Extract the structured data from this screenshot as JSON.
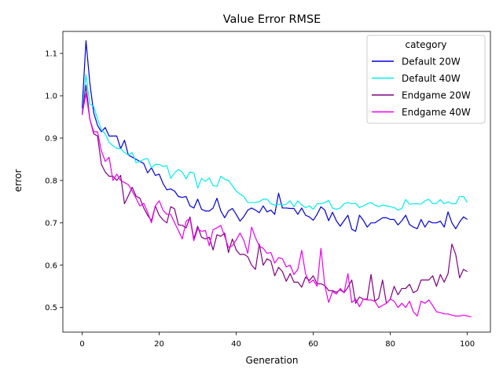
{
  "chart_data": {
    "type": "line",
    "title": "Value Error RMSE",
    "xlabel": "Generation",
    "ylabel": "error",
    "xlim": [
      -5,
      106
    ],
    "ylim": [
      0.442,
      1.152
    ],
    "xticks": [
      0,
      20,
      40,
      60,
      80,
      100
    ],
    "yticks": [
      0.5,
      0.6,
      0.7,
      0.8,
      0.9,
      1.0,
      1.1
    ],
    "grid": false,
    "legend": {
      "title": "category",
      "position": "top-right"
    },
    "x_start": 0,
    "series": [
      {
        "name": "Default 20W",
        "color": "#0000dd",
        "values": [
          0.97,
          1.13,
          1.03,
          0.96,
          0.93,
          0.915,
          0.925,
          0.905,
          0.905,
          0.905,
          0.875,
          0.895,
          0.86,
          0.855,
          0.85,
          0.845,
          0.84,
          0.818,
          0.83,
          0.812,
          0.815,
          0.793,
          0.778,
          0.78,
          0.775,
          0.762,
          0.76,
          0.762,
          0.74,
          0.735,
          0.756,
          0.732,
          0.728,
          0.728,
          0.735,
          0.758,
          0.728,
          0.712,
          0.728,
          0.734,
          0.72,
          0.704,
          0.715,
          0.73,
          0.735,
          0.73,
          0.724,
          0.74,
          0.726,
          0.73,
          0.72,
          0.77,
          0.735,
          0.735,
          0.734,
          0.734,
          0.72,
          0.735,
          0.718,
          0.714,
          0.706,
          0.72,
          0.738,
          0.73,
          0.705,
          0.725,
          0.705,
          0.692,
          0.705,
          0.718,
          0.685,
          0.68,
          0.718,
          0.706,
          0.69,
          0.7,
          0.7,
          0.706,
          0.712,
          0.712,
          0.708,
          0.708,
          0.695,
          0.705,
          0.718,
          0.696,
          0.69,
          0.686,
          0.708,
          0.69,
          0.704,
          0.7,
          0.7,
          0.704,
          0.69,
          0.726,
          0.7,
          0.686,
          0.702,
          0.714,
          0.708
        ]
      },
      {
        "name": "Default 40W",
        "color": "#00eeee",
        "values": [
          0.96,
          1.05,
          0.98,
          0.975,
          0.945,
          0.92,
          0.91,
          0.89,
          0.882,
          0.876,
          0.875,
          0.866,
          0.86,
          0.866,
          0.842,
          0.845,
          0.85,
          0.852,
          0.83,
          0.838,
          0.838,
          0.833,
          0.835,
          0.805,
          0.818,
          0.826,
          0.82,
          0.804,
          0.82,
          0.818,
          0.782,
          0.805,
          0.798,
          0.806,
          0.788,
          0.786,
          0.81,
          0.803,
          0.8,
          0.788,
          0.775,
          0.768,
          0.762,
          0.748,
          0.748,
          0.748,
          0.75,
          0.756,
          0.756,
          0.745,
          0.742,
          0.744,
          0.742,
          0.744,
          0.752,
          0.738,
          0.752,
          0.742,
          0.736,
          0.74,
          0.732,
          0.745,
          0.745,
          0.748,
          0.753,
          0.735,
          0.732,
          0.735,
          0.745,
          0.748,
          0.745,
          0.746,
          0.736,
          0.74,
          0.745,
          0.748,
          0.742,
          0.738,
          0.742,
          0.74,
          0.738,
          0.736,
          0.73,
          0.734,
          0.755,
          0.744,
          0.745,
          0.745,
          0.744,
          0.752,
          0.756,
          0.745,
          0.746,
          0.755,
          0.745,
          0.75,
          0.745,
          0.745,
          0.762,
          0.762,
          0.748
        ]
      },
      {
        "name": "Endgame 20W",
        "color": "#800080",
        "values": [
          0.955,
          1.025,
          0.945,
          0.91,
          0.905,
          0.838,
          0.82,
          0.81,
          0.81,
          0.8,
          0.812,
          0.745,
          0.764,
          0.784,
          0.763,
          0.758,
          0.735,
          0.718,
          0.705,
          0.74,
          0.718,
          0.707,
          0.7,
          0.738,
          0.733,
          0.695,
          0.694,
          0.688,
          0.714,
          0.662,
          0.692,
          0.666,
          0.662,
          0.666,
          0.636,
          0.672,
          0.668,
          0.676,
          0.63,
          0.662,
          0.636,
          0.625,
          0.626,
          0.62,
          0.6,
          0.59,
          0.65,
          0.6,
          0.615,
          0.61,
          0.575,
          0.595,
          0.585,
          0.562,
          0.58,
          0.56,
          0.56,
          0.548,
          0.572,
          0.564,
          0.575,
          0.556,
          0.556,
          0.552,
          0.54,
          0.54,
          0.536,
          0.542,
          0.535,
          0.548,
          0.565,
          0.51,
          0.525,
          0.52,
          0.52,
          0.578,
          0.515,
          0.522,
          0.565,
          0.51,
          0.52,
          0.55,
          0.53,
          0.545,
          0.545,
          0.555,
          0.535,
          0.54,
          0.565,
          0.565,
          0.565,
          0.575,
          0.55,
          0.578,
          0.56,
          0.58,
          0.65,
          0.625,
          0.57,
          0.59,
          0.585
        ]
      },
      {
        "name": "Endgame 40W",
        "color": "#ee00ee",
        "values": [
          0.955,
          1.005,
          0.945,
          0.915,
          0.915,
          0.87,
          0.845,
          0.855,
          0.8,
          0.815,
          0.8,
          0.795,
          0.79,
          0.775,
          0.758,
          0.74,
          0.746,
          0.725,
          0.7,
          0.74,
          0.752,
          0.73,
          0.72,
          0.72,
          0.7,
          0.682,
          0.662,
          0.704,
          0.71,
          0.658,
          0.686,
          0.68,
          0.682,
          0.646,
          0.684,
          0.688,
          0.694,
          0.668,
          0.642,
          0.646,
          0.66,
          0.676,
          0.658,
          0.628,
          0.69,
          0.665,
          0.645,
          0.64,
          0.628,
          0.63,
          0.605,
          0.618,
          0.615,
          0.596,
          0.6,
          0.578,
          0.59,
          0.635,
          0.58,
          0.558,
          0.565,
          0.55,
          0.64,
          0.552,
          0.512,
          0.538,
          0.532,
          0.545,
          0.535,
          0.58,
          0.512,
          0.52,
          0.502,
          0.52,
          0.518,
          0.518,
          0.515,
          0.5,
          0.505,
          0.51,
          0.52,
          0.515,
          0.5,
          0.51,
          0.5,
          0.515,
          0.49,
          0.48,
          0.515,
          0.51,
          0.518,
          0.505,
          0.49,
          0.488,
          0.485,
          0.485,
          0.482,
          0.48,
          0.48,
          0.482,
          0.48,
          0.478
        ]
      }
    ]
  }
}
